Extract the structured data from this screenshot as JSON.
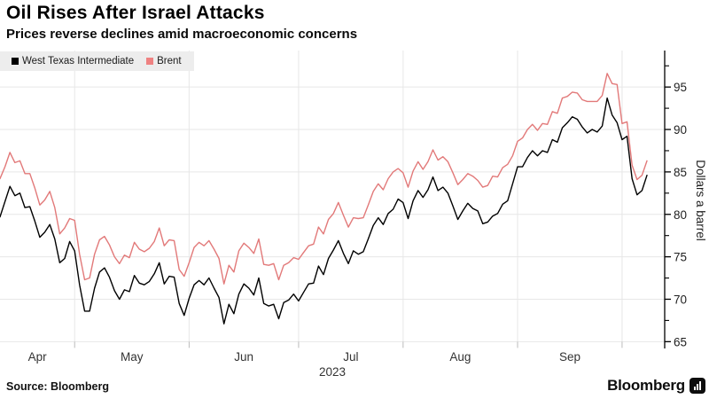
{
  "header": {
    "title": "Oil Rises After Israel Attacks",
    "subtitle": "Prices reverse declines amid macroeconomic concerns"
  },
  "legend": {
    "items": [
      {
        "label": "West Texas Intermediate",
        "color": "#000000"
      },
      {
        "label": "Brent",
        "color": "#ef8282"
      }
    ]
  },
  "footer": {
    "source": "Source:  Bloomberg",
    "brand": "Bloomberg"
  },
  "colors": {
    "wti_line": "#000000",
    "brent_line": "#e27979",
    "gridline": "#e7e7e7",
    "axis": "#000000",
    "tick_label": "#1f1f1f",
    "month_label": "#333333",
    "legend_bg": "#ededed"
  },
  "chart_data": {
    "type": "line",
    "title": "Oil Rises After Israel Attacks",
    "subtitle": "Prices reverse declines amid macroeconomic concerns",
    "x_unit": "daily closes, Apr 10 - Oct 9, 2023 (weekdays)",
    "xlabel": "",
    "ylabel": "Dollars a barrel",
    "year_label": "2023",
    "x_tick_labels": [
      "Apr",
      "May",
      "Jun",
      "Jul",
      "Aug",
      "Sep"
    ],
    "x_month_label_idx": [
      7.5,
      26.5,
      49,
      70.5,
      92.5,
      114.5
    ],
    "x_month_boundary_idx": [
      15,
      38,
      60,
      81,
      104,
      125
    ],
    "y_ticks": [
      65,
      70,
      75,
      80,
      85,
      90,
      95
    ],
    "y_minor_ticks": [
      67.5,
      72.5,
      77.5,
      82.5,
      87.5,
      92.5,
      97.5
    ],
    "ylim": [
      64.2,
      99.3
    ],
    "legend_position": "top-left",
    "grid": true,
    "series": [
      {
        "name": "West Texas Intermediate",
        "color": "#000000",
        "values": [
          79.7,
          81.5,
          83.3,
          82.2,
          82.5,
          80.8,
          80.9,
          79.2,
          77.3,
          77.9,
          78.8,
          77.1,
          74.3,
          74.8,
          76.8,
          75.7,
          71.7,
          68.6,
          68.6,
          71.3,
          73.2,
          73.7,
          72.6,
          71.0,
          70.0,
          71.1,
          70.9,
          72.8,
          71.9,
          71.7,
          72.1,
          73.0,
          74.3,
          71.8,
          72.7,
          72.6,
          69.5,
          68.1,
          70.1,
          71.7,
          72.2,
          71.7,
          72.5,
          71.3,
          70.2,
          67.1,
          69.4,
          68.3,
          70.6,
          71.8,
          71.3,
          70.5,
          72.5,
          69.5,
          69.2,
          69.4,
          67.7,
          69.6,
          69.9,
          70.6,
          69.8,
          70.8,
          71.8,
          71.9,
          73.9,
          72.9,
          74.8,
          75.8,
          76.9,
          75.4,
          74.2,
          75.7,
          75.3,
          75.6,
          77.1,
          78.7,
          79.6,
          78.8,
          80.1,
          80.6,
          81.8,
          81.4,
          79.5,
          81.6,
          82.8,
          82.0,
          82.9,
          84.4,
          82.8,
          83.2,
          82.5,
          81.0,
          79.4,
          80.4,
          81.3,
          80.7,
          80.4,
          78.9,
          79.1,
          79.8,
          80.1,
          81.2,
          81.6,
          83.6,
          85.6,
          85.6,
          86.7,
          87.5,
          86.9,
          87.5,
          87.3,
          88.8,
          88.5,
          90.2,
          90.8,
          91.5,
          91.2,
          90.3,
          89.6,
          90.0,
          89.7,
          90.4,
          93.7,
          91.7,
          90.8,
          88.8,
          89.2,
          84.2,
          82.3,
          82.8,
          84.6
        ]
      },
      {
        "name": "Brent",
        "color": "#e27979",
        "values": [
          84.2,
          85.6,
          87.3,
          86.1,
          86.3,
          84.8,
          84.8,
          83.1,
          81.1,
          81.7,
          82.7,
          80.8,
          77.7,
          78.4,
          79.5,
          79.3,
          75.3,
          72.3,
          72.5,
          75.3,
          77.0,
          77.4,
          76.4,
          75.0,
          74.2,
          75.2,
          74.9,
          76.7,
          75.9,
          75.6,
          76.0,
          76.8,
          78.4,
          76.3,
          77.0,
          76.9,
          73.5,
          72.7,
          74.3,
          76.1,
          76.7,
          76.3,
          76.9,
          75.9,
          74.8,
          71.8,
          74.0,
          73.2,
          75.7,
          76.6,
          76.1,
          75.4,
          77.1,
          74.1,
          74.0,
          74.2,
          72.3,
          74.0,
          74.3,
          74.9,
          74.7,
          75.5,
          76.3,
          76.5,
          78.5,
          77.7,
          79.4,
          80.1,
          81.4,
          79.9,
          78.5,
          79.6,
          79.5,
          79.6,
          81.1,
          82.7,
          83.6,
          82.9,
          84.2,
          85.0,
          85.4,
          84.9,
          83.2,
          85.1,
          86.2,
          85.3,
          86.2,
          87.6,
          86.4,
          86.8,
          86.2,
          84.9,
          83.5,
          84.1,
          84.8,
          84.5,
          84.0,
          83.2,
          83.4,
          84.5,
          84.4,
          85.5,
          85.9,
          86.9,
          88.6,
          89.0,
          90.0,
          90.6,
          89.9,
          90.7,
          90.6,
          92.1,
          91.9,
          93.7,
          93.9,
          94.4,
          94.3,
          93.5,
          93.3,
          93.3,
          93.3,
          94.0,
          96.6,
          95.4,
          95.3,
          90.7,
          90.9,
          85.8,
          84.1,
          84.6,
          86.3
        ]
      }
    ]
  }
}
